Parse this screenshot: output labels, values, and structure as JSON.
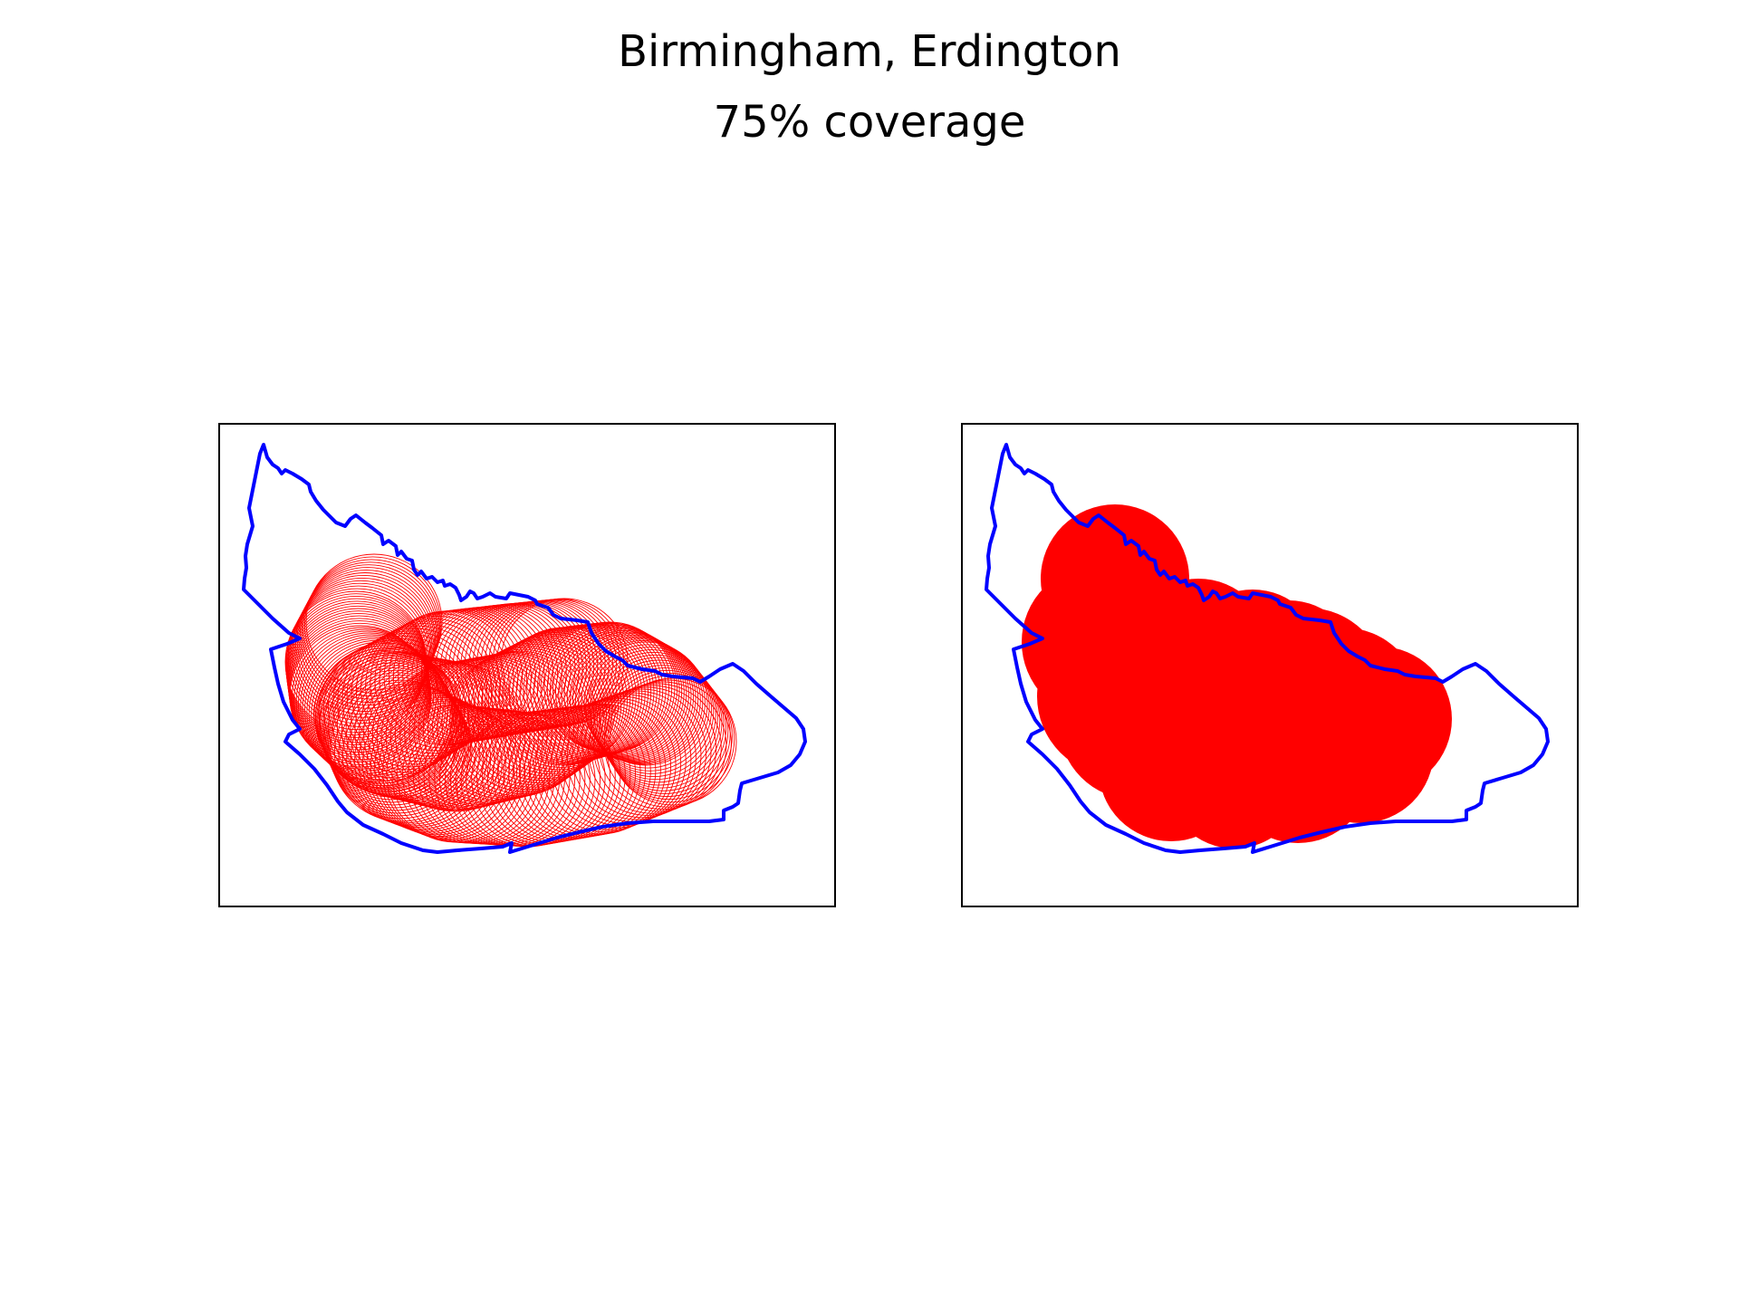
{
  "figure": {
    "title": "Birmingham, Erdington",
    "subtitle": "75% coverage"
  },
  "colors": {
    "boundary": "#0000ff",
    "coverage": "#ff0000",
    "frame": "#000000",
    "background": "#ffffff"
  },
  "panels": [
    {
      "id": "left",
      "style": "circle-outlines"
    },
    {
      "id": "right",
      "style": "filled-union"
    }
  ]
}
